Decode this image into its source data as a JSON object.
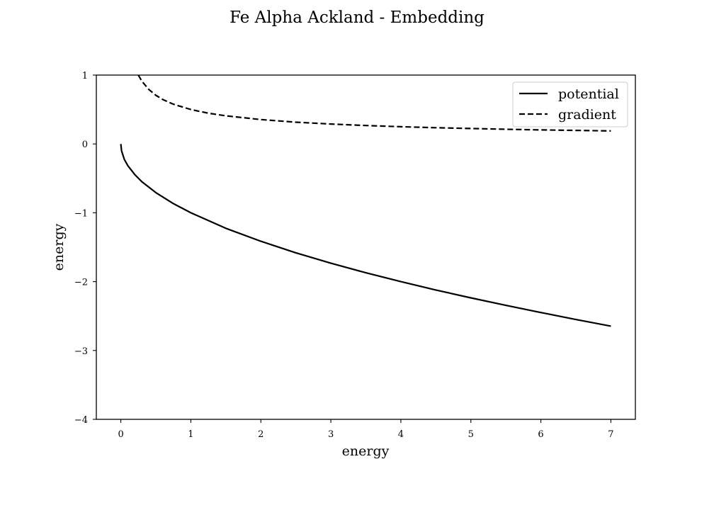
{
  "chart_data": {
    "type": "line",
    "title": "Fe Alpha Ackland - Embedding",
    "xlabel": "energy",
    "ylabel": "energy",
    "xlim": [
      -0.35,
      7.35
    ],
    "ylim": [
      -4,
      1
    ],
    "xticks": [
      0,
      1,
      2,
      3,
      4,
      5,
      6,
      7
    ],
    "xtick_labels": [
      "0",
      "1",
      "2",
      "3",
      "4",
      "5",
      "6",
      "7"
    ],
    "yticks": [
      1,
      0,
      -1,
      -2,
      -3,
      -4
    ],
    "ytick_labels": [
      "1",
      "0",
      "−1",
      "−2",
      "−3",
      "−4"
    ],
    "grid": false,
    "legend_position": "top-right",
    "series": [
      {
        "name": "potential",
        "style": "solid",
        "color": "#000000",
        "x": [
          0,
          0.01,
          0.05,
          0.1,
          0.2,
          0.3,
          0.5,
          0.75,
          1,
          1.5,
          2,
          2.5,
          3,
          3.5,
          4,
          4.5,
          5,
          5.5,
          6,
          6.5,
          7
        ],
        "y": [
          0,
          -0.1,
          -0.224,
          -0.316,
          -0.447,
          -0.548,
          -0.707,
          -0.866,
          -1,
          -1.225,
          -1.414,
          -1.581,
          -1.732,
          -1.871,
          -2,
          -2.121,
          -2.236,
          -2.345,
          -2.449,
          -2.55,
          -2.646
        ]
      },
      {
        "name": "gradient",
        "style": "dashed",
        "color": "#000000",
        "x": [
          0.25,
          0.3,
          0.4,
          0.5,
          0.6,
          0.75,
          1,
          1.25,
          1.5,
          2,
          2.5,
          3,
          3.5,
          4,
          4.5,
          5,
          5.5,
          6,
          6.5,
          7
        ],
        "y": [
          1,
          0.913,
          0.791,
          0.707,
          0.645,
          0.577,
          0.5,
          0.447,
          0.408,
          0.354,
          0.316,
          0.289,
          0.267,
          0.25,
          0.236,
          0.224,
          0.213,
          0.204,
          0.196,
          0.189
        ]
      }
    ]
  }
}
